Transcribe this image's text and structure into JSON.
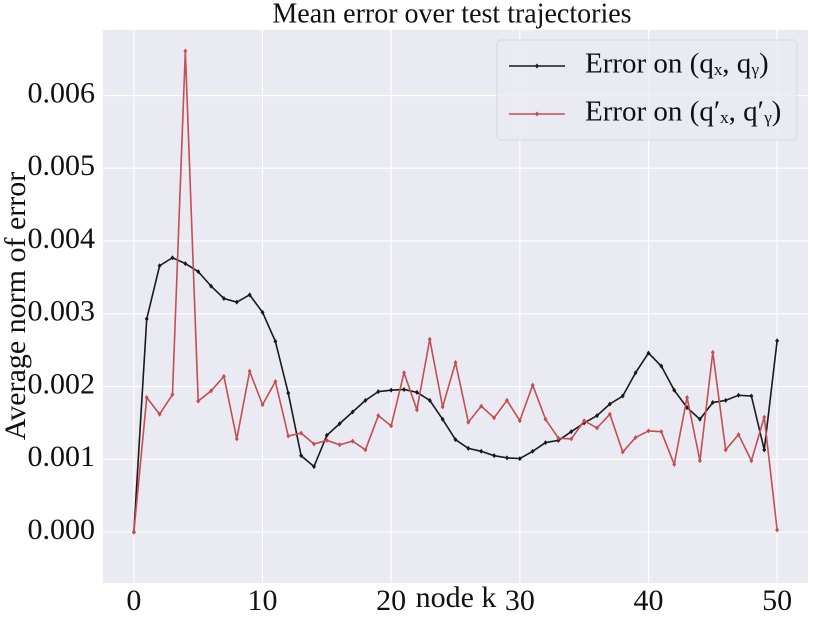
{
  "chart_data": {
    "type": "line",
    "title": "Mean error over test trajectories",
    "xlabel": "node k",
    "ylabel": "Average norm of error",
    "x": [
      0,
      1,
      2,
      3,
      4,
      5,
      6,
      7,
      8,
      9,
      10,
      11,
      12,
      13,
      14,
      15,
      16,
      17,
      18,
      19,
      20,
      21,
      22,
      23,
      24,
      25,
      26,
      27,
      28,
      29,
      30,
      31,
      32,
      33,
      34,
      35,
      36,
      37,
      38,
      39,
      40,
      41,
      42,
      43,
      44,
      45,
      46,
      47,
      48,
      49,
      50
    ],
    "series": [
      {
        "name": "Error on (qₓ, qᵧ)",
        "color": "#1a1a1a",
        "values": [
          0.0,
          0.00293,
          0.00366,
          0.00377,
          0.00369,
          0.00358,
          0.00338,
          0.00321,
          0.00316,
          0.00326,
          0.00302,
          0.00262,
          0.00191,
          0.00105,
          0.0009,
          0.00133,
          0.00149,
          0.00165,
          0.00181,
          0.00193,
          0.00195,
          0.00196,
          0.00192,
          0.00181,
          0.00155,
          0.00127,
          0.00115,
          0.00111,
          0.00105,
          0.00102,
          0.00101,
          0.00111,
          0.00123,
          0.00126,
          0.00138,
          0.0015,
          0.0016,
          0.00176,
          0.00187,
          0.00219,
          0.00246,
          0.00228,
          0.00195,
          0.00171,
          0.00155,
          0.00178,
          0.00181,
          0.00188,
          0.00187,
          0.00113,
          0.00263
        ]
      },
      {
        "name": "Error on (q′ₓ, q′ᵧ)",
        "color": "#c44e52",
        "values": [
          0.0,
          0.00185,
          0.00162,
          0.00189,
          0.00661,
          0.0018,
          0.00194,
          0.00214,
          0.00128,
          0.00221,
          0.00175,
          0.00207,
          0.00132,
          0.00136,
          0.00121,
          0.00126,
          0.0012,
          0.00125,
          0.00113,
          0.0016,
          0.00146,
          0.00219,
          0.00168,
          0.00265,
          0.00172,
          0.00233,
          0.00151,
          0.00173,
          0.00157,
          0.00181,
          0.00153,
          0.00202,
          0.00155,
          0.00129,
          0.00128,
          0.00153,
          0.00143,
          0.00162,
          0.0011,
          0.0013,
          0.00139,
          0.00138,
          0.00093,
          0.00185,
          0.00098,
          0.00247,
          0.00113,
          0.00134,
          0.00098,
          0.00158,
          3e-05
        ]
      }
    ],
    "xlim": [
      -2.4,
      52.4
    ],
    "ylim": [
      -0.0007,
      0.0069
    ],
    "xticks": [
      0,
      10,
      20,
      30,
      40,
      50
    ],
    "yticks": [
      {
        "value": 0,
        "label": "0.000"
      },
      0.001,
      0.002,
      0.003,
      0.004,
      0.005,
      0.006
    ],
    "grid": true,
    "legend": "upper right"
  }
}
